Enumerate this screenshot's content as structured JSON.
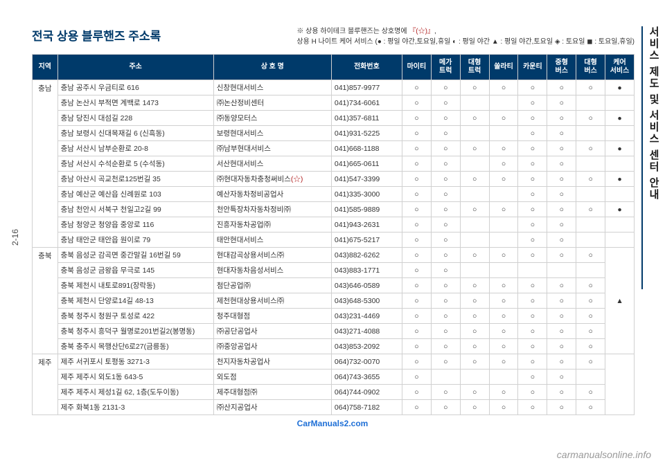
{
  "page_number": "2-16",
  "side_title": "서비스 제도 및 서비스 센터 안내",
  "main_title": "전국 상용 블루핸즈 주소록",
  "note_line1_prefix": "※ 상용 하이테크 블루핸즈는 상호명에 ",
  "note_line1_accent": "『(☆)』",
  "note_line1_suffix": ",",
  "note_line2": "상용 H 나이트 케어 서비스 (● : 평일 야간,토요일,휴일 ◐ : 평일 야간 ▲ : 평일 야간,토요일 ◈ : 토요일 ◼ : 토요일,휴일)",
  "columns": [
    "지역",
    "주소",
    "상 호 명",
    "전화번호",
    "마이티",
    "메가\n트럭",
    "대형\n트럭",
    "쏠라티",
    "카운티",
    "중형\n버스",
    "대형\n버스",
    "케어\n서비스"
  ],
  "col_classes": [
    "col-region",
    "col-addr",
    "col-shop",
    "col-phone",
    "col-mark",
    "col-mark",
    "col-mark",
    "col-mark",
    "col-mark",
    "col-mark",
    "col-mark",
    "col-mark"
  ],
  "regions": [
    {
      "name": "충남",
      "rows": [
        {
          "addr": "충남 공주시 우금티로 616",
          "shop": "신창현대서비스",
          "phone": "041)857-9977",
          "marks": [
            "○",
            "○",
            "○",
            "○",
            "○",
            "○",
            "○",
            "●"
          ]
        },
        {
          "addr": "충남 논산시 부적면 계백로 1473",
          "shop": "㈜논산정비센터",
          "phone": "041)734-6061",
          "marks": [
            "○",
            "○",
            "",
            "",
            "○",
            "○",
            "",
            ""
          ]
        },
        {
          "addr": "충남 당진시 대섬길 228",
          "shop": "㈜동양모터스",
          "phone": "041)357-6811",
          "marks": [
            "○",
            "○",
            "○",
            "○",
            "○",
            "○",
            "○",
            "●"
          ]
        },
        {
          "addr": "충남 보령시 신대목재길 6 (신흑동)",
          "shop": "보령현대서비스",
          "phone": "041)931-5225",
          "marks": [
            "○",
            "○",
            "",
            "",
            "○",
            "○",
            "",
            ""
          ]
        },
        {
          "addr": "충남 서산시 남부순환로 20-8",
          "shop": "㈜남부현대서비스",
          "phone": "041)668-1188",
          "marks": [
            "○",
            "○",
            "○",
            "○",
            "○",
            "○",
            "○",
            "●"
          ]
        },
        {
          "addr": "충남 서산시 수석순환로 5 (수석동)",
          "shop": "서산현대서비스",
          "phone": "041)665-0611",
          "marks": [
            "○",
            "○",
            "",
            "○",
            "○",
            "○",
            "",
            ""
          ]
        },
        {
          "addr": "충남 아산시 곡교천로125번길 35",
          "shop": "㈜현대자동차충청써비스(☆)",
          "shop_star": true,
          "phone": "041)547-3399",
          "marks": [
            "○",
            "○",
            "○",
            "○",
            "○",
            "○",
            "○",
            "●"
          ]
        },
        {
          "addr": "충남 예산군 예산읍 신례원로 103",
          "shop": "예산자동차정비공업사",
          "phone": "041)335-3000",
          "marks": [
            "○",
            "○",
            "",
            "",
            "○",
            "○",
            "",
            ""
          ]
        },
        {
          "addr": "충남 천안시 서북구 천일고2길 99",
          "shop": "천안특장차자동차정비㈜",
          "phone": "041)585-9889",
          "marks": [
            "○",
            "○",
            "○",
            "○",
            "○",
            "○",
            "○",
            "●"
          ]
        },
        {
          "addr": "충남 청양군 청양읍 중앙로 116",
          "shop": "진흥자동차공업㈜",
          "phone": "041)943-2631",
          "marks": [
            "○",
            "○",
            "",
            "",
            "○",
            "○",
            "",
            ""
          ]
        },
        {
          "addr": "충남 태안군 태안읍 원이로 79",
          "shop": "태안현대서비스",
          "phone": "041)675-5217",
          "marks": [
            "○",
            "○",
            "",
            "",
            "○",
            "○",
            "",
            ""
          ]
        }
      ]
    },
    {
      "name": "충북",
      "care_span": "▲",
      "rows": [
        {
          "addr": "충북 음성군 감곡면 중간말길 16번길 59",
          "shop": "현대감곡상용서비스㈜",
          "phone": "043)882-6262",
          "marks": [
            "○",
            "○",
            "○",
            "○",
            "○",
            "○",
            "○"
          ]
        },
        {
          "addr": "충북 음성군 금왕읍 무극로 145",
          "shop": "현대자동차음성서비스",
          "phone": "043)883-1771",
          "marks": [
            "○",
            "○",
            "",
            "",
            "",
            "",
            ""
          ]
        },
        {
          "addr": "충북 제천시 내토로891(장락동)",
          "shop": "첨단공업㈜",
          "phone": "043)646-0589",
          "marks": [
            "○",
            "○",
            "○",
            "○",
            "○",
            "○",
            "○"
          ]
        },
        {
          "addr": "충북 제천시 단양로14길 48-13",
          "shop": "제천현대상용서비스㈜",
          "phone": "043)648-5300",
          "marks": [
            "○",
            "○",
            "○",
            "○",
            "○",
            "○",
            "○"
          ]
        },
        {
          "addr": "충북 청주시 청원구 토성로 422",
          "shop": "청주대형점",
          "phone": "043)231-4469",
          "marks": [
            "○",
            "○",
            "○",
            "○",
            "○",
            "○",
            "○"
          ]
        },
        {
          "addr": "충북 청주시 흥덕구 월명로201번길2(봉명동)",
          "shop": "㈜공단공업사",
          "phone": "043)271-4088",
          "marks": [
            "○",
            "○",
            "○",
            "○",
            "○",
            "○",
            "○"
          ]
        },
        {
          "addr": "충북 충주시 목행산단6로27(금릉동)",
          "shop": "㈜중앙공업사",
          "phone": "043)853-2092",
          "marks": [
            "○",
            "○",
            "○",
            "○",
            "○",
            "○",
            "○"
          ]
        }
      ]
    },
    {
      "name": "제주",
      "care_span": "",
      "rows": [
        {
          "addr": "제주 서귀포시 토평동 3271-3",
          "shop": "천지자동차공업사",
          "phone": "064)732-0070",
          "marks": [
            "○",
            "○",
            "○",
            "○",
            "○",
            "○",
            "○"
          ]
        },
        {
          "addr": "제주 제주시 외도1동 643-5",
          "shop": "외도점",
          "phone": "064)743-3655",
          "marks": [
            "○",
            "",
            "",
            "",
            "○",
            "○",
            "",
            ""
          ]
        },
        {
          "addr": "제주 제주시 제성1길 62, 1층(도두이동)",
          "shop": "제주대형점㈜",
          "phone": "064)744-0902",
          "marks": [
            "○",
            "○",
            "○",
            "○",
            "○",
            "○",
            "○"
          ]
        },
        {
          "addr": "제주 화북1동 2131-3",
          "shop": "㈜산지공업사",
          "phone": "064)758-7182",
          "marks": [
            "○",
            "○",
            "○",
            "○",
            "○",
            "○",
            "○"
          ]
        }
      ]
    }
  ],
  "watermark": "CarManuals2.com",
  "watermark2": "carmanualsonline.info",
  "colors": {
    "header_bg": "#003a6a",
    "header_text": "#ffffff",
    "border": "#d0d0d0",
    "accent": "#b22222"
  }
}
